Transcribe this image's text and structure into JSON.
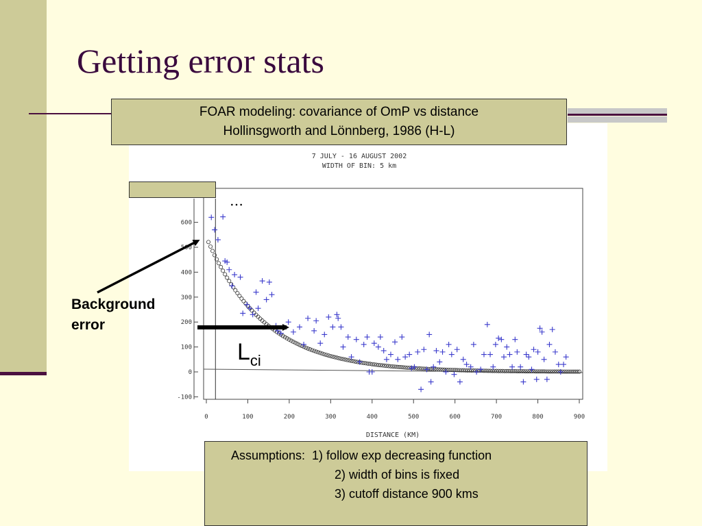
{
  "slide": {
    "title": "Getting error stats",
    "header_line1": "FOAR modeling: covariance of OmP vs distance",
    "header_line2": "Hollinsgworth and Lönnberg, 1986  (H-L)",
    "assumptions": [
      "Assumptions:  1) follow exp decreasing function",
      "2) width of bins is fixed",
      "3) cutoff distance 900 kms"
    ],
    "annotation_background": [
      "Background",
      "error"
    ],
    "annotation_lci_main": "L",
    "annotation_lci_sub": "ci",
    "annotation_dots": "…"
  },
  "chart_data": {
    "type": "scatter",
    "title": "7 JULY - 16 AUGUST 2002",
    "subtitle": "WIDTH OF BIN: 5 km",
    "xlabel": "DISTANCE (KM)",
    "ylabel": "",
    "xlim": [
      0,
      900
    ],
    "ylim": [
      -100,
      680
    ],
    "x_ticks": [
      "0",
      "100",
      "200",
      "300",
      "400",
      "500",
      "600",
      "700",
      "800",
      "900"
    ],
    "y_ticks": [
      "-100",
      "0",
      "100",
      "200",
      "300",
      "400",
      "500",
      "600"
    ],
    "grid": false,
    "colors": {
      "observed": "#3a3acc",
      "fit": "#333333"
    },
    "cutoff_x": 22,
    "observed": [
      [
        12,
        620
      ],
      [
        20,
        570
      ],
      [
        28,
        530
      ],
      [
        40,
        622
      ],
      [
        45,
        445
      ],
      [
        50,
        440
      ],
      [
        55,
        410
      ],
      [
        62,
        345
      ],
      [
        68,
        390
      ],
      [
        82,
        380
      ],
      [
        88,
        235
      ],
      [
        98,
        270
      ],
      [
        105,
        255
      ],
      [
        112,
        230
      ],
      [
        120,
        320
      ],
      [
        125,
        255
      ],
      [
        135,
        365
      ],
      [
        145,
        290
      ],
      [
        152,
        360
      ],
      [
        158,
        310
      ],
      [
        168,
        185
      ],
      [
        172,
        165
      ],
      [
        180,
        155
      ],
      [
        198,
        200
      ],
      [
        210,
        160
      ],
      [
        225,
        180
      ],
      [
        235,
        110
      ],
      [
        245,
        215
      ],
      [
        260,
        165
      ],
      [
        265,
        205
      ],
      [
        275,
        115
      ],
      [
        285,
        150
      ],
      [
        295,
        220
      ],
      [
        305,
        180
      ],
      [
        315,
        230
      ],
      [
        318,
        215
      ],
      [
        325,
        180
      ],
      [
        330,
        100
      ],
      [
        342,
        140
      ],
      [
        350,
        60
      ],
      [
        362,
        130
      ],
      [
        370,
        40
      ],
      [
        380,
        110
      ],
      [
        388,
        140
      ],
      [
        393,
        0
      ],
      [
        400,
        0
      ],
      [
        405,
        115
      ],
      [
        415,
        100
      ],
      [
        420,
        140
      ],
      [
        428,
        85
      ],
      [
        435,
        50
      ],
      [
        445,
        70
      ],
      [
        455,
        120
      ],
      [
        462,
        50
      ],
      [
        472,
        140
      ],
      [
        480,
        60
      ],
      [
        490,
        70
      ],
      [
        495,
        15
      ],
      [
        502,
        20
      ],
      [
        510,
        80
      ],
      [
        518,
        -70
      ],
      [
        525,
        90
      ],
      [
        532,
        10
      ],
      [
        538,
        150
      ],
      [
        542,
        -40
      ],
      [
        548,
        20
      ],
      [
        555,
        85
      ],
      [
        563,
        40
      ],
      [
        570,
        80
      ],
      [
        578,
        0
      ],
      [
        585,
        110
      ],
      [
        592,
        70
      ],
      [
        598,
        -10
      ],
      [
        605,
        90
      ],
      [
        612,
        -40
      ],
      [
        620,
        50
      ],
      [
        628,
        30
      ],
      [
        638,
        20
      ],
      [
        645,
        110
      ],
      [
        652,
        0
      ],
      [
        662,
        10
      ],
      [
        670,
        70
      ],
      [
        678,
        190
      ],
      [
        685,
        70
      ],
      [
        692,
        20
      ],
      [
        698,
        110
      ],
      [
        705,
        135
      ],
      [
        712,
        130
      ],
      [
        718,
        60
      ],
      [
        725,
        100
      ],
      [
        732,
        70
      ],
      [
        738,
        20
      ],
      [
        745,
        130
      ],
      [
        750,
        80
      ],
      [
        758,
        20
      ],
      [
        765,
        -40
      ],
      [
        772,
        70
      ],
      [
        778,
        60
      ],
      [
        785,
        10
      ],
      [
        790,
        90
      ],
      [
        797,
        -30
      ],
      [
        800,
        80
      ],
      [
        805,
        175
      ],
      [
        810,
        160
      ],
      [
        815,
        50
      ],
      [
        822,
        -30
      ],
      [
        828,
        110
      ],
      [
        835,
        170
      ],
      [
        842,
        80
      ],
      [
        850,
        30
      ],
      [
        855,
        0
      ],
      [
        862,
        30
      ],
      [
        868,
        60
      ]
    ],
    "fit_formula": "y = 540 * exp(-x / 140)"
  }
}
